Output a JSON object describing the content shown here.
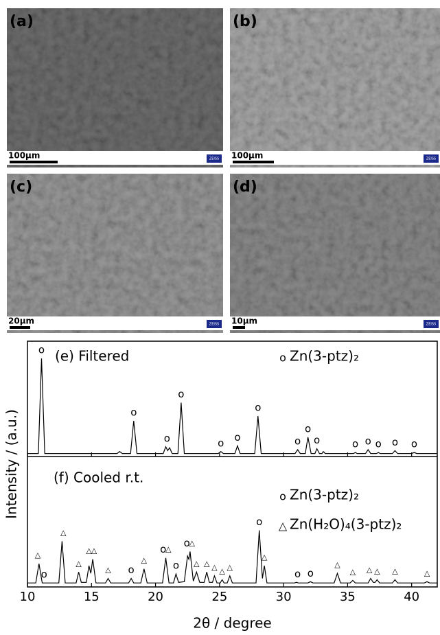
{
  "images": [
    {
      "label": "(a)",
      "scale_bar": "100μm",
      "logo": "ZEISS"
    },
    {
      "label": "(b)",
      "scale_bar": "100μm",
      "logo": "ZEISS"
    },
    {
      "label": "(c)",
      "scale_bar": "20μm",
      "logo": "ZEISS"
    },
    {
      "label": "(d)",
      "scale_bar": "10μm",
      "logo": "ZEISS"
    }
  ],
  "chart_data": {
    "type": "line",
    "xlabel": "2θ / degree",
    "ylabel": "Intensity / (a.u.)",
    "xlim": [
      10,
      42
    ],
    "xticks": [
      10,
      15,
      20,
      25,
      30,
      35,
      40
    ],
    "panels": [
      {
        "title": "(e) Filtered",
        "color": "#000000",
        "ylim": [
          0,
          118
        ],
        "x": [
          10,
          10.85,
          11.1,
          11.35,
          17.0,
          17.2,
          17.4,
          18.05,
          18.3,
          18.55,
          20.6,
          20.8,
          20.95,
          21.1,
          21.3,
          21.75,
          22.0,
          22.25,
          24.9,
          25.1,
          25.3,
          26.2,
          26.4,
          26.6,
          27.75,
          28.0,
          28.25,
          30.9,
          31.1,
          31.3,
          31.7,
          31.9,
          32.15,
          32.45,
          32.6,
          32.8,
          33.0,
          33.1,
          33.25,
          35.45,
          35.6,
          35.75,
          36.4,
          36.6,
          36.8,
          37.25,
          37.4,
          37.55,
          38.5,
          38.7,
          38.9,
          40.0,
          40.2,
          40.4,
          42
        ],
        "values": [
          1,
          1,
          100,
          1,
          1,
          3,
          1,
          1,
          35,
          1,
          1,
          8,
          4,
          7,
          1,
          1,
          54,
          1,
          1,
          3,
          1,
          1,
          9,
          1,
          1,
          40,
          1,
          1,
          5,
          1,
          1,
          18,
          1,
          1,
          6,
          1,
          1,
          3,
          1,
          1,
          2,
          1,
          1,
          5,
          1,
          1,
          2,
          1,
          1,
          4,
          1,
          1,
          2,
          1,
          1
        ],
        "phases": [
          {
            "symbol": "o",
            "name": "Zn(3-ptz)₂",
            "peaks": [
              11.1,
              18.3,
              20.9,
              22.0,
              25.1,
              26.4,
              28.0,
              31.1,
              31.9,
              32.6,
              35.6,
              36.6,
              37.4,
              38.7,
              40.2
            ]
          }
        ]
      },
      {
        "title": "(f) Cooled r.t.",
        "color": "#000000",
        "ylim": [
          0,
          200
        ],
        "x": [
          10,
          10.65,
          10.9,
          11.15,
          12.45,
          12.7,
          12.95,
          13.8,
          14.0,
          14.2,
          14.6,
          14.8,
          14.95,
          15.1,
          15.35,
          16.1,
          16.3,
          16.5,
          17.9,
          18.1,
          18.3,
          18.85,
          19.1,
          19.35,
          20.55,
          20.8,
          21.05,
          21.4,
          21.6,
          21.8,
          22.25,
          22.5,
          22.6,
          22.7,
          22.95,
          23.2,
          23.45,
          23.8,
          24.0,
          24.2,
          24.45,
          24.6,
          24.8,
          25.05,
          25.2,
          25.35,
          25.6,
          25.8,
          26.0,
          27.85,
          28.1,
          28.35,
          28.5,
          28.7,
          30.85,
          31.0,
          31.15,
          31.9,
          32.1,
          32.3,
          33.95,
          34.2,
          34.45,
          35.2,
          35.4,
          35.6,
          36.6,
          36.8,
          37.0,
          37.15,
          37.3,
          37.5,
          38.5,
          38.7,
          38.9,
          41.0,
          41.2,
          41.4,
          42
        ],
        "values": [
          3,
          3,
          33,
          3,
          3,
          68,
          3,
          3,
          20,
          4,
          4,
          30,
          18,
          40,
          3,
          3,
          10,
          3,
          3,
          10,
          3,
          3,
          25,
          3,
          3,
          42,
          3,
          3,
          17,
          4,
          5,
          45,
          40,
          52,
          6,
          20,
          4,
          4,
          20,
          4,
          4,
          14,
          3,
          3,
          8,
          3,
          3,
          14,
          3,
          3,
          85,
          10,
          30,
          3,
          3,
          4,
          3,
          3,
          5,
          3,
          3,
          18,
          3,
          3,
          7,
          3,
          3,
          10,
          4,
          4,
          8,
          3,
          3,
          8,
          3,
          3,
          5,
          3,
          3
        ],
        "phases": [
          {
            "symbol": "o",
            "name": "Zn(3-ptz)₂",
            "peaks": [
              11.3,
              18.1,
              20.6,
              21.6,
              22.45,
              28.1,
              31.1,
              32.1
            ]
          },
          {
            "symbol": "△",
            "name": "Zn(H₂O)₄(3-ptz)₂",
            "peaks": [
              10.8,
              12.8,
              14.0,
              14.8,
              15.2,
              16.3,
              19.1,
              21.0,
              22.85,
              23.2,
              24.0,
              24.6,
              25.2,
              25.8,
              28.5,
              34.2,
              35.4,
              36.7,
              37.3,
              38.7,
              41.2
            ]
          }
        ]
      }
    ]
  }
}
